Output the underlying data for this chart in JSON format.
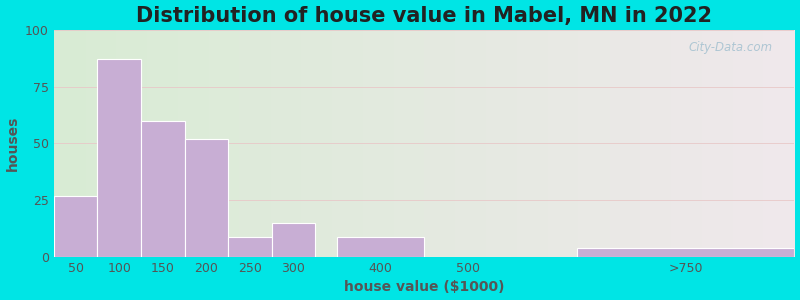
{
  "title": "Distribution of house value in Mabel, MN in 2022",
  "xlabel": "house value ($1000)",
  "ylabel": "houses",
  "bar_centers": [
    50,
    100,
    150,
    200,
    250,
    300,
    400,
    500,
    750
  ],
  "bar_widths": [
    50,
    50,
    50,
    50,
    50,
    50,
    100,
    100,
    250
  ],
  "bar_heights": [
    27,
    87,
    60,
    52,
    9,
    15,
    9,
    0,
    4
  ],
  "xtick_positions": [
    50,
    100,
    150,
    200,
    250,
    300,
    400,
    500,
    750
  ],
  "xtick_labels": [
    "50",
    "100",
    "150",
    "200",
    "250",
    "300",
    "400",
    "500",
    ">750"
  ],
  "bar_color": "#c8aed4",
  "bar_edge_color": "#ffffff",
  "ylim": [
    0,
    100
  ],
  "yticks": [
    0,
    25,
    50,
    75,
    100
  ],
  "bg_color_left": "#d8ecd4",
  "bg_color_right": "#f0e8ec",
  "outer_bg": "#00e5e5",
  "title_fontsize": 15,
  "axis_label_fontsize": 10,
  "tick_fontsize": 9,
  "watermark_text": "City-Data.com",
  "xmin": 25,
  "xmax": 875
}
